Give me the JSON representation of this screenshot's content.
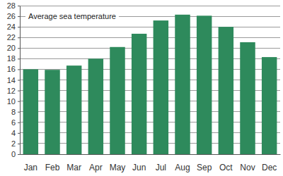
{
  "chart_data": {
    "type": "bar",
    "title": "Average sea temperature",
    "categories": [
      "Jan",
      "Feb",
      "Mar",
      "Apr",
      "May",
      "Jun",
      "Jul",
      "Aug",
      "Sep",
      "Oct",
      "Nov",
      "Dec"
    ],
    "values": [
      16,
      15.9,
      16.7,
      18,
      20.2,
      22.7,
      25.2,
      26.3,
      26.1,
      24,
      21.1,
      18.3
    ],
    "color": "#2e8a5c",
    "ylim": [
      0,
      28
    ],
    "yticks": [
      0,
      2,
      4,
      6,
      8,
      10,
      12,
      14,
      16,
      18,
      20,
      22,
      24,
      26,
      28
    ],
    "grid": true
  }
}
